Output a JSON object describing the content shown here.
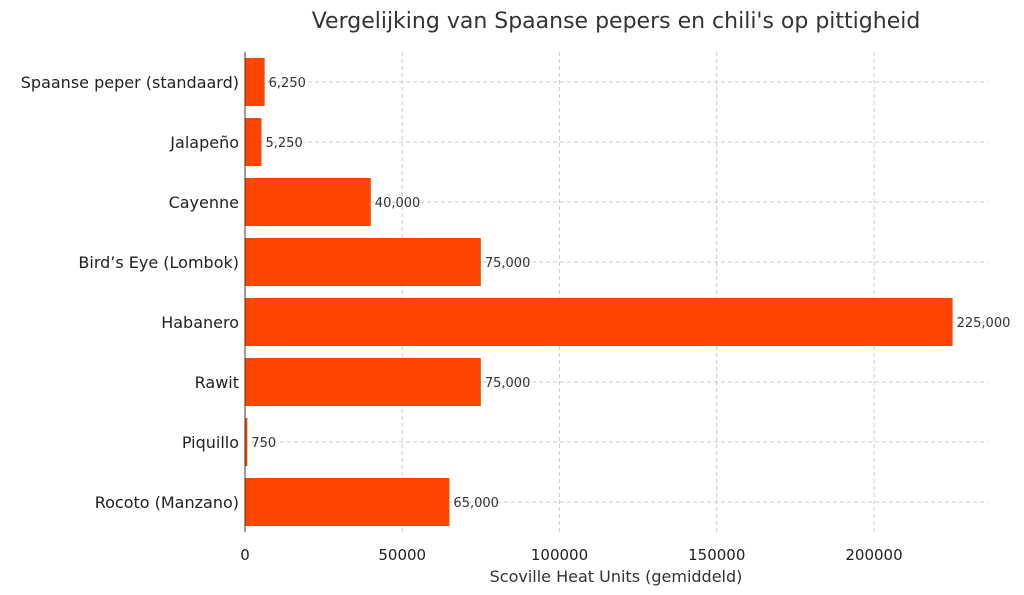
{
  "chart_data": {
    "type": "bar",
    "orientation": "horizontal",
    "title": "Vergelijking van Spaanse pepers en chili's op pittigheid",
    "xlabel": "Scoville Heat Units (gemiddeld)",
    "ylabel": "",
    "categories": [
      "Spaanse peper (standaard)",
      "Jalapeño",
      "Cayenne",
      "Bird’s Eye (Lombok)",
      "Habanero",
      "Rawit",
      "Piquillo",
      "Rocoto (Manzano)"
    ],
    "values": [
      6250,
      5250,
      40000,
      75000,
      225000,
      75000,
      750,
      65000
    ],
    "value_labels": [
      "6,250",
      "5,250",
      "40,000",
      "75,000",
      "225,000",
      "75,000",
      "750",
      "65,000"
    ],
    "xlim": [
      0,
      236250
    ],
    "xticks": [
      0,
      50000,
      100000,
      150000,
      200000
    ],
    "xtick_labels": [
      "0",
      "50000",
      "100000",
      "150000",
      "200000"
    ],
    "grid": true,
    "bar_color": "#ff4500"
  }
}
